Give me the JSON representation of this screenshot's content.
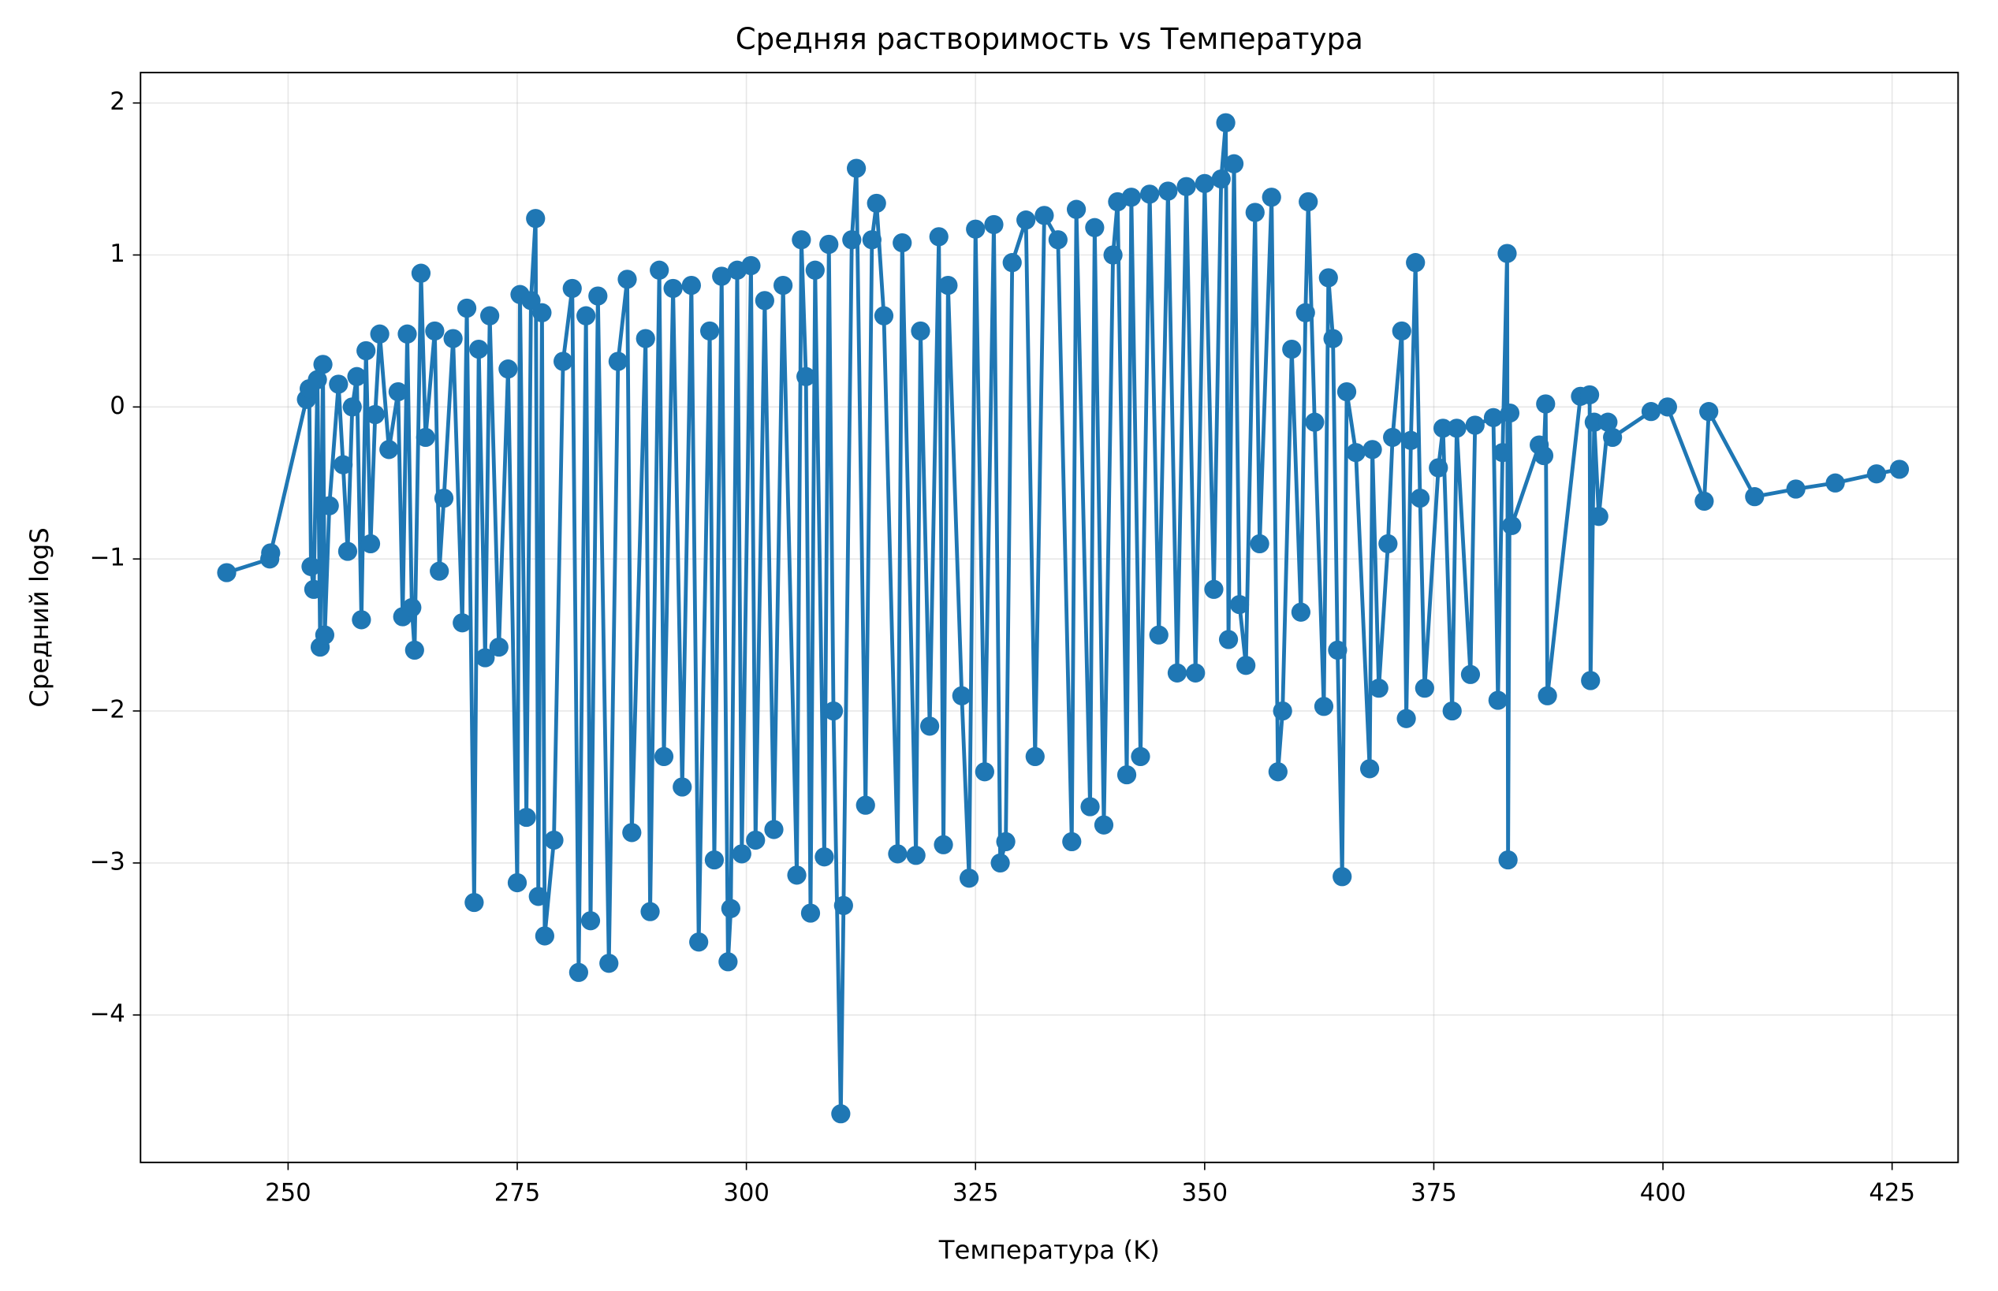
{
  "chart_data": {
    "type": "line",
    "title": "Средняя растворимость vs Температура",
    "xlabel": "Температура (K)",
    "ylabel": "Средний logS",
    "color": "#1f77b4",
    "grid": true,
    "xlim": [
      233.9,
      432.2
    ],
    "ylim": [
      -4.97,
      2.2
    ],
    "xticks": [
      250,
      275,
      300,
      325,
      350,
      375,
      400,
      425
    ],
    "yticks": [
      {
        "value": -4,
        "label": "−4"
      },
      {
        "value": -3,
        "label": "−3"
      },
      {
        "value": -2,
        "label": "−2"
      },
      {
        "value": -1,
        "label": "−1"
      },
      0,
      1,
      2
    ],
    "x": [
      243.3,
      248.0,
      248.1,
      252.0,
      252.3,
      252.5,
      252.8,
      253.2,
      253.5,
      253.8,
      254.0,
      254.5,
      255.5,
      256,
      256.5,
      257,
      257.5,
      258,
      258.5,
      259,
      259.5,
      260,
      261,
      262,
      262.5,
      263,
      263.5,
      263.8,
      264.5,
      265,
      266,
      266.5,
      267,
      268,
      269,
      269.5,
      270.3,
      270.8,
      271.5,
      272,
      273,
      274,
      275,
      275.3,
      276,
      276.5,
      277,
      277.3,
      277.7,
      278,
      279,
      280,
      281,
      281.7,
      282.5,
      283,
      283.8,
      285,
      286,
      287,
      287.5,
      289,
      289.5,
      290.5,
      291,
      292,
      293,
      294,
      294.8,
      296,
      296.5,
      297.3,
      298,
      298.3,
      299,
      299.5,
      300.5,
      301,
      302,
      303,
      304,
      305.5,
      306,
      306.5,
      307,
      307.5,
      308.5,
      309,
      309.5,
      310.3,
      310.6,
      311.5,
      312,
      313,
      313.7,
      314.2,
      315,
      316.5,
      317,
      318.5,
      319,
      320,
      321,
      321.5,
      322,
      323.5,
      324.3,
      325,
      326,
      327,
      327.7,
      328.3,
      329,
      330.5,
      331.5,
      332.5,
      334,
      335.5,
      336,
      337.5,
      338,
      339,
      340,
      340.5,
      341.5,
      342,
      343,
      344,
      345,
      346,
      347,
      348,
      349,
      350,
      351,
      351.8,
      352.3,
      352.6,
      353.2,
      353.8,
      354.5,
      355.5,
      356,
      357.3,
      358,
      358.5,
      359.5,
      360.5,
      361,
      361.3,
      362,
      363,
      363.5,
      364,
      364.5,
      365,
      365.5,
      366.5,
      368,
      368.3,
      369,
      370,
      370.5,
      371.5,
      372,
      372.5,
      373,
      373.5,
      374,
      375.5,
      376,
      377,
      377.5,
      379,
      379.5,
      381.5,
      382,
      382.5,
      383,
      383.1,
      383.3,
      383.5,
      386.5,
      387,
      387.2,
      387.4,
      391,
      392,
      392.1,
      392.5,
      393,
      394,
      394.5,
      398.7,
      400.5,
      404.5,
      405,
      410,
      414.5,
      418.8,
      423.3,
      425.8
    ],
    "values": [
      -1.09,
      -1.0,
      -0.96,
      0.05,
      0.12,
      -1.05,
      -1.2,
      0.18,
      -1.58,
      0.28,
      -1.5,
      -0.65,
      0.15,
      -0.38,
      -0.95,
      0.0,
      0.2,
      -1.4,
      0.37,
      -0.9,
      -0.05,
      0.48,
      -0.28,
      0.1,
      -1.38,
      0.48,
      -1.32,
      -1.6,
      0.88,
      -0.2,
      0.5,
      -1.08,
      -0.6,
      0.45,
      -1.42,
      0.65,
      -3.26,
      0.38,
      -1.65,
      0.6,
      -1.58,
      0.25,
      -3.13,
      0.74,
      -2.7,
      0.7,
      1.24,
      -3.22,
      0.62,
      -3.48,
      -2.85,
      0.3,
      0.78,
      -3.72,
      0.6,
      -3.38,
      0.73,
      -3.66,
      0.3,
      0.84,
      -2.8,
      0.45,
      -3.32,
      0.9,
      -2.3,
      0.78,
      -2.5,
      0.8,
      -3.52,
      0.5,
      -2.98,
      0.86,
      -3.65,
      -3.3,
      0.9,
      -2.94,
      0.93,
      -2.85,
      0.7,
      -2.78,
      0.8,
      -3.08,
      1.1,
      0.2,
      -3.33,
      0.9,
      -2.96,
      1.07,
      -2.0,
      -4.65,
      -3.28,
      1.1,
      1.57,
      -2.62,
      1.1,
      1.34,
      0.6,
      -2.94,
      1.08,
      -2.95,
      0.5,
      -2.1,
      1.12,
      -2.88,
      0.8,
      -1.9,
      -3.1,
      1.17,
      -2.4,
      1.2,
      -3.0,
      -2.86,
      0.95,
      1.23,
      -2.3,
      1.26,
      1.1,
      -2.86,
      1.3,
      -2.63,
      1.18,
      -2.75,
      1.0,
      1.35,
      -2.42,
      1.38,
      -2.3,
      1.4,
      -1.5,
      1.42,
      -1.75,
      1.45,
      -1.75,
      1.47,
      -1.2,
      1.5,
      1.87,
      -1.53,
      1.6,
      -1.3,
      -1.7,
      1.28,
      -0.9,
      1.38,
      -2.4,
      -2.0,
      0.38,
      -1.35,
      0.62,
      1.35,
      -0.1,
      -1.97,
      0.85,
      0.45,
      -1.6,
      -3.09,
      0.1,
      -0.3,
      -2.38,
      -0.28,
      -1.85,
      -0.9,
      -0.2,
      0.5,
      -2.05,
      -0.22,
      0.95,
      -0.6,
      -1.85,
      -0.4,
      -0.14,
      -2.0,
      -0.14,
      -1.76,
      -0.12,
      -0.07,
      -1.93,
      -0.3,
      1.01,
      -2.98,
      -0.04,
      -0.78,
      -0.25,
      -0.32,
      0.02,
      -1.9,
      0.07,
      0.08,
      -1.8,
      -0.1,
      -0.72,
      -0.1,
      -0.2,
      -0.03,
      0.0,
      -0.62,
      -0.03,
      -0.59,
      -0.54,
      -0.5,
      -0.44,
      -0.41
    ]
  }
}
